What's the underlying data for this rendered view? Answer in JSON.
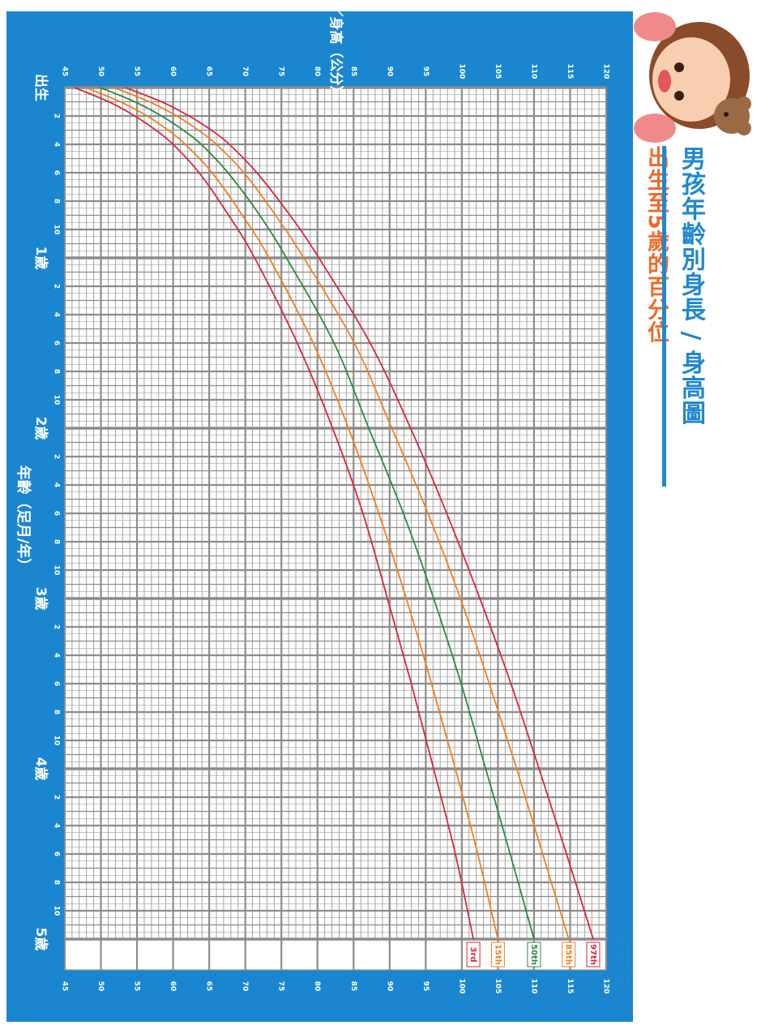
{
  "title": "男孩年齡別身長 / 身高圖",
  "subtitle": "出生至5歲的百分位",
  "percentile_word": "百分位",
  "colors": {
    "frame": "#1a86cf",
    "grid": "#8c8c8c",
    "title": "#1f88cf",
    "subtitle": "#ee6a2a",
    "p3": "#d7263d",
    "p15": "#f07f1e",
    "p50": "#2a8a3e",
    "p85": "#f07f1e",
    "p97": "#d7263d"
  },
  "illustration": "cartoon-girl-with-teddy-bear",
  "chart_data": {
    "type": "line",
    "title": "男孩年齡別身長 / 身高圖",
    "subtitle": "出生至5歲的百分位",
    "xlabel": "年齡（足月/年）",
    "ylabel": "身長／身高（公分）",
    "xlim": [
      0,
      60
    ],
    "ylim": [
      45,
      120
    ],
    "x_unit": "months",
    "y_ticks": [
      45,
      50,
      55,
      60,
      65,
      70,
      75,
      80,
      85,
      90,
      95,
      100,
      105,
      110,
      115,
      120
    ],
    "x_ticks": [
      {
        "month": 0,
        "label": "出生"
      },
      {
        "month": 2,
        "label": "2"
      },
      {
        "month": 4,
        "label": "4"
      },
      {
        "month": 6,
        "label": "6"
      },
      {
        "month": 8,
        "label": "8"
      },
      {
        "month": 10,
        "label": "10"
      },
      {
        "month": 12,
        "label": "1歲"
      },
      {
        "month": 14,
        "label": "2"
      },
      {
        "month": 16,
        "label": "4"
      },
      {
        "month": 18,
        "label": "6"
      },
      {
        "month": 20,
        "label": "8"
      },
      {
        "month": 22,
        "label": "10"
      },
      {
        "month": 24,
        "label": "2歲"
      },
      {
        "month": 26,
        "label": "2"
      },
      {
        "month": 28,
        "label": "4"
      },
      {
        "month": 30,
        "label": "6"
      },
      {
        "month": 32,
        "label": "8"
      },
      {
        "month": 34,
        "label": "10"
      },
      {
        "month": 36,
        "label": "3歲"
      },
      {
        "month": 38,
        "label": "2"
      },
      {
        "month": 40,
        "label": "4"
      },
      {
        "month": 42,
        "label": "6"
      },
      {
        "month": 44,
        "label": "8"
      },
      {
        "month": 46,
        "label": "10"
      },
      {
        "month": 48,
        "label": "4歲"
      },
      {
        "month": 50,
        "label": "2"
      },
      {
        "month": 52,
        "label": "4"
      },
      {
        "month": 54,
        "label": "6"
      },
      {
        "month": 56,
        "label": "8"
      },
      {
        "month": 58,
        "label": "10"
      },
      {
        "month": 60,
        "label": "5歲"
      }
    ],
    "x": [
      0,
      1,
      2,
      3,
      4,
      6,
      9,
      12,
      18,
      24,
      30,
      36,
      42,
      48,
      54,
      60
    ],
    "series": [
      {
        "name": "3rd",
        "color": "#d7263d",
        "values": [
          46.3,
          51.1,
          54.7,
          57.6,
          60.0,
          63.6,
          67.7,
          71.3,
          77.2,
          82.1,
          86.3,
          89.7,
          93.0,
          96.1,
          99.1,
          101.6
        ]
      },
      {
        "name": "15th",
        "color": "#f07f1e",
        "values": [
          47.9,
          52.7,
          56.4,
          59.3,
          61.7,
          65.4,
          69.6,
          73.3,
          79.4,
          84.3,
          88.5,
          92.3,
          95.8,
          99.1,
          102.2,
          105.0
        ]
      },
      {
        "name": "50th",
        "color": "#2a8a3e",
        "values": [
          49.9,
          54.7,
          58.4,
          61.4,
          63.9,
          67.6,
          72.0,
          75.7,
          82.3,
          87.1,
          91.9,
          96.1,
          99.9,
          103.3,
          106.7,
          110.0
        ]
      },
      {
        "name": "85th",
        "color": "#f07f1e",
        "values": [
          51.8,
          56.7,
          60.5,
          63.5,
          66.0,
          69.8,
          74.2,
          78.1,
          85.1,
          90.3,
          95.3,
          99.8,
          103.8,
          107.6,
          111.2,
          114.8
        ]
      },
      {
        "name": "97th",
        "color": "#d7263d",
        "values": [
          53.4,
          58.4,
          62.2,
          65.3,
          67.8,
          71.6,
          76.2,
          80.2,
          87.3,
          92.9,
          97.9,
          102.5,
          106.8,
          110.7,
          114.5,
          118.2
        ]
      }
    ],
    "end_labels": [
      "3rd",
      "15th",
      "50th",
      "85th",
      "97th"
    ],
    "grid": true,
    "orientation": "rotated-90-clockwise"
  }
}
